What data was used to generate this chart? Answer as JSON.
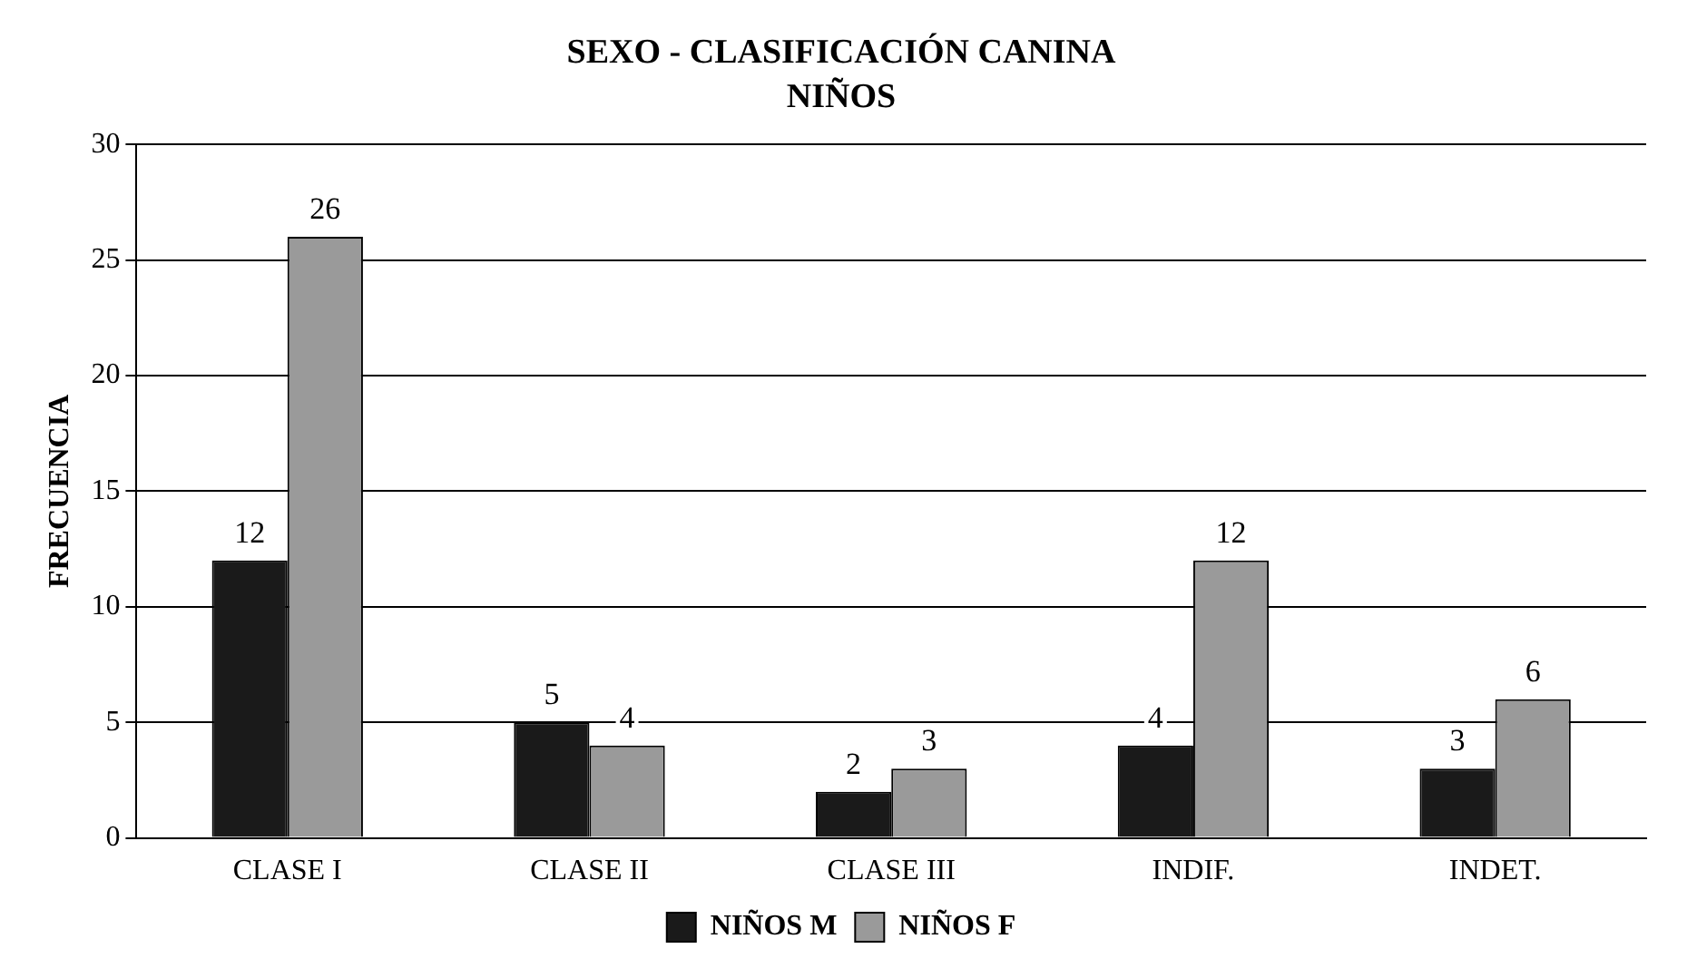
{
  "chart_data": {
    "type": "bar",
    "title": "SEXO - CLASIFICACIÓN CANINA",
    "subtitle": "NIÑOS",
    "ylabel": "FRECUENCIA",
    "categories": [
      "CLASE I",
      "CLASE II",
      "CLASE III",
      "INDIF.",
      "INDET."
    ],
    "series": [
      {
        "name": "NIÑOS M",
        "color": "#1a1a1a",
        "values": [
          12,
          5,
          2,
          4,
          3
        ]
      },
      {
        "name": "NIÑOS F",
        "color": "#9a9a9a",
        "values": [
          26,
          4,
          3,
          12,
          6
        ]
      }
    ],
    "ylim": [
      0,
      30
    ],
    "yticks": [
      0,
      5,
      10,
      15,
      20,
      25,
      30
    ],
    "grid": "y",
    "legend": "bottom",
    "data_labels": true
  }
}
